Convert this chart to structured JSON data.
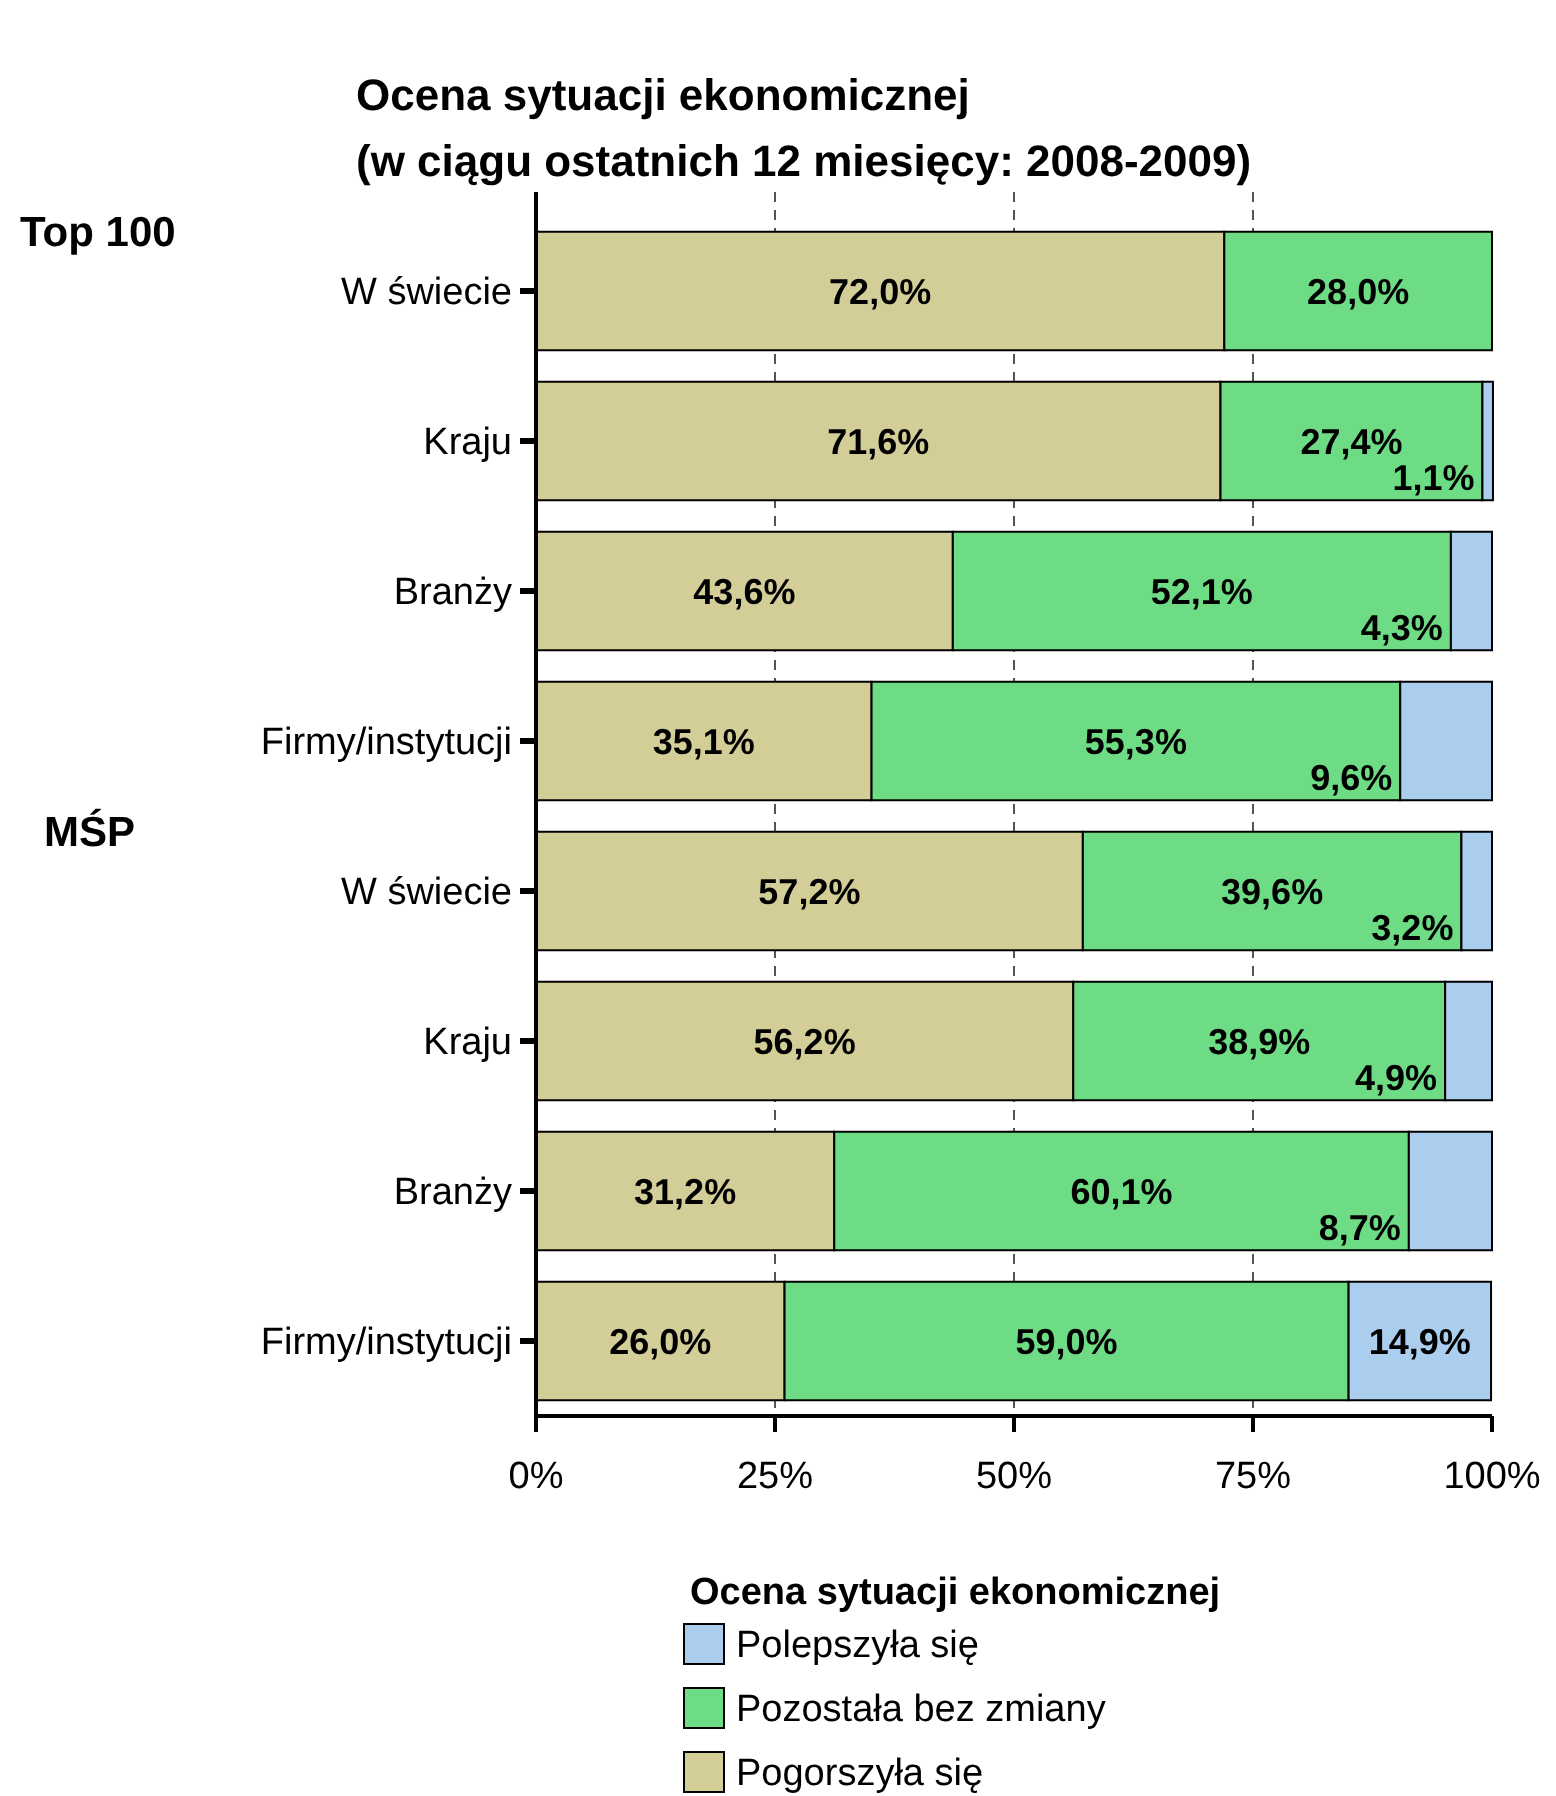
{
  "chart_data": {
    "type": "bar",
    "orientation": "horizontal",
    "stacked": true,
    "title": "Ocena sytuacji ekonomicznej\n(w ciągu ostatnich 12 miesięcy: 2008-2009)",
    "categories": [
      "W świecie",
      "Kraju",
      "Branży",
      "Firmy/instytucji",
      "W świecie",
      "Kraju",
      "Branży",
      "Firmy/instytucji"
    ],
    "annotations": [
      "Top 100",
      "MŚP"
    ],
    "series": [
      {
        "name": "Pogorszyła się",
        "color": "#d3cd98",
        "values": [
          72.0,
          71.6,
          43.6,
          35.1,
          57.2,
          56.2,
          31.2,
          26.0
        ],
        "value_labels": [
          "72,0%",
          "71,6%",
          "43,6%",
          "35,1%",
          "57,2%",
          "56,2%",
          "31,2%",
          "26,0%"
        ]
      },
      {
        "name": "Pozostała bez zmiany",
        "color": "#6edc85",
        "values": [
          28.0,
          27.4,
          52.1,
          55.3,
          39.6,
          38.9,
          60.1,
          59.0
        ],
        "value_labels": [
          "28,0%",
          "27,4%",
          "52,1%",
          "55,3%",
          "39,6%",
          "38,9%",
          "60,1%",
          "59,0%"
        ]
      },
      {
        "name": "Polepszyła się",
        "color": "#abcdee",
        "values": [
          null,
          1.1,
          4.3,
          9.6,
          3.2,
          4.9,
          8.7,
          14.9
        ],
        "value_labels": [
          null,
          "1,1%",
          "4,3%",
          "9,6%",
          "3,2%",
          "4,9%",
          "8,7%",
          "14,9%"
        ]
      }
    ],
    "xlim": [
      0,
      100
    ],
    "xticks": [
      {
        "value": 0,
        "label": "0%"
      },
      {
        "value": 25,
        "label": "25%"
      },
      {
        "value": 50,
        "label": "50%"
      },
      {
        "value": 75,
        "label": "75%"
      },
      {
        "value": 100,
        "label": "100%"
      }
    ],
    "grid": "x",
    "legend": "bottom",
    "legend_title": "Ocena sytuacji ekonomicznej"
  }
}
